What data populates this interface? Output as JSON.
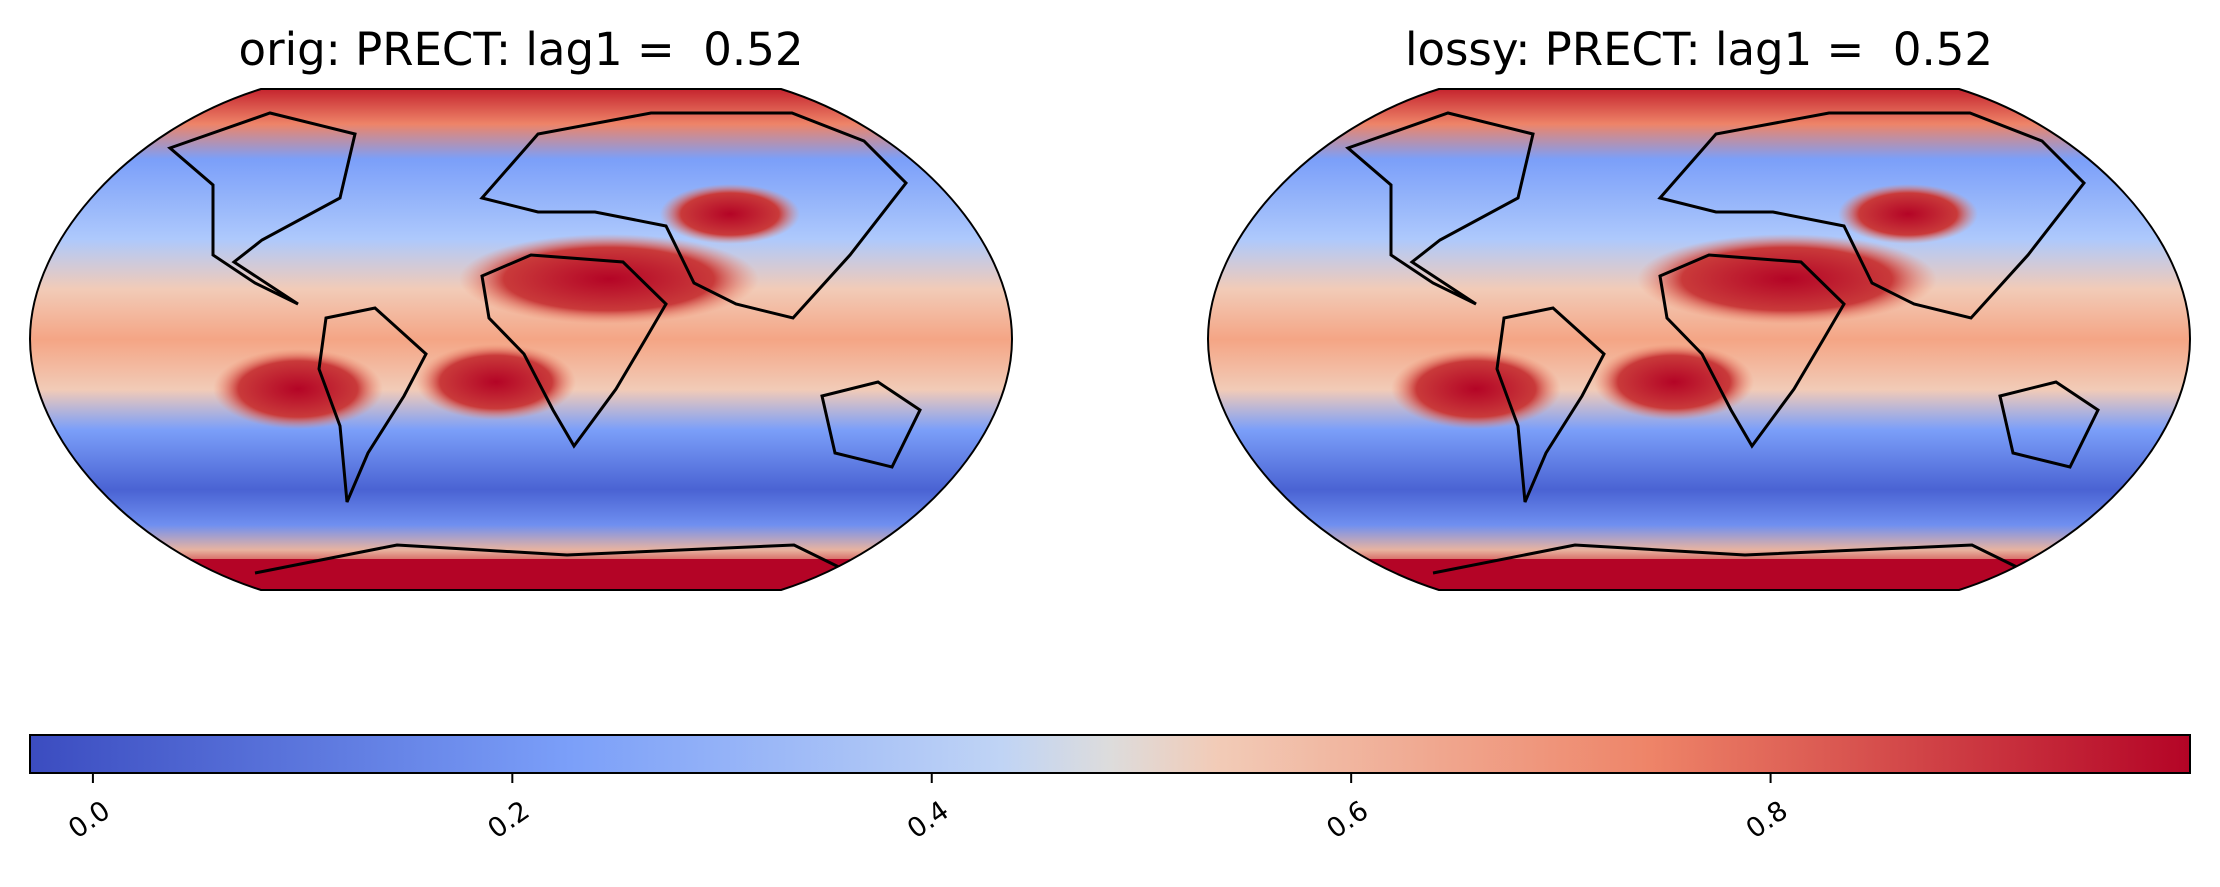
{
  "panels": [
    {
      "title": "orig: PRECT: lag1 =  0.52"
    },
    {
      "title": "lossy: PRECT: lag1 =  0.52"
    }
  ],
  "colorbar": {
    "lim": [
      -0.03,
      1.0
    ],
    "ticks": [
      {
        "value": 0,
        "label": "0.0"
      },
      0.2,
      0.4,
      0.6,
      0.8
    ],
    "colormap": "coolwarm"
  }
}
